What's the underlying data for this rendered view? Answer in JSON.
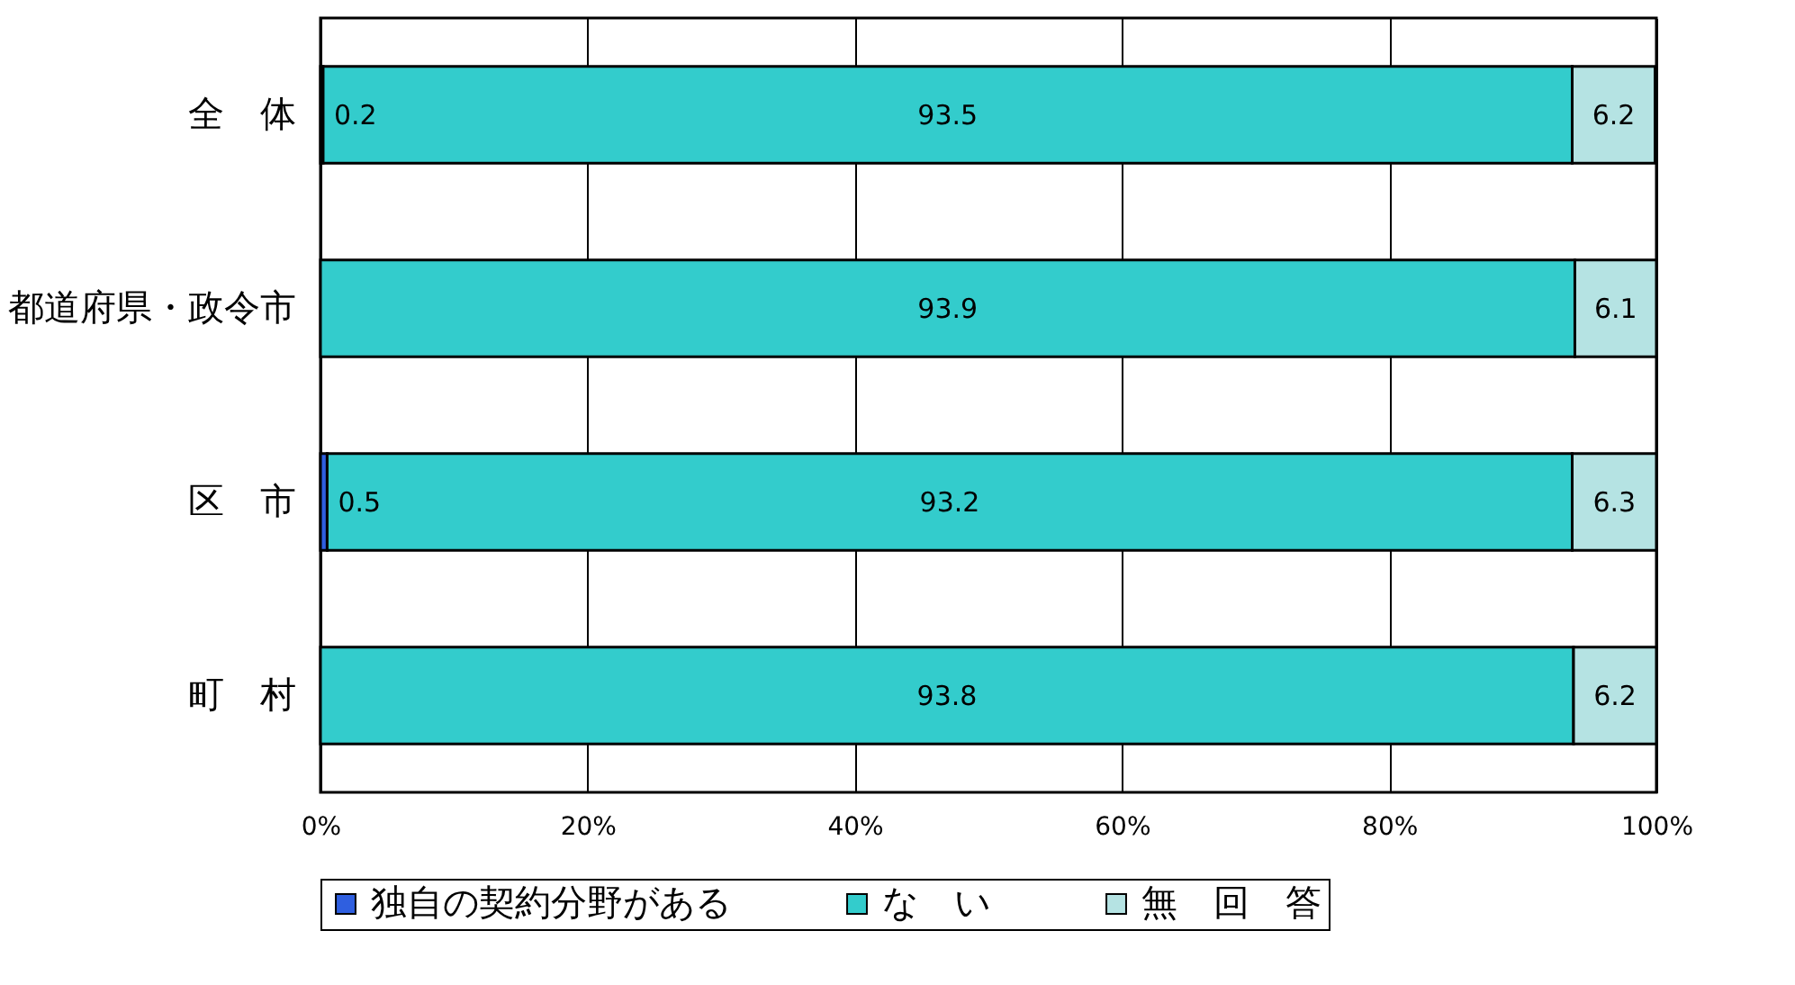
{
  "chart_data": {
    "type": "bar",
    "orientation": "horizontal",
    "stacked": true,
    "categories": [
      "全　体",
      "都道府県・政令市",
      "区　市",
      "町　村"
    ],
    "series": [
      {
        "name": "独自の契約分野がある",
        "color": "#2f5fe0",
        "values": [
          0.2,
          null,
          0.5,
          null
        ],
        "value_labels": [
          "0.2",
          null,
          "0.5",
          null
        ]
      },
      {
        "name": "な　い",
        "color": "#33cccc",
        "values": [
          93.5,
          93.9,
          93.2,
          93.8
        ],
        "value_labels": [
          "93.5",
          "93.9",
          "93.2",
          "93.8"
        ]
      },
      {
        "name": "無　回　答",
        "color": "#b5e3e3",
        "values": [
          6.2,
          6.1,
          6.3,
          6.2
        ],
        "value_labels": [
          "6.2",
          "6.1",
          "6.3",
          "6.2"
        ]
      }
    ],
    "xlim": [
      0,
      100
    ],
    "xticks": [
      {
        "value": 0,
        "label": "0%"
      },
      {
        "value": 20,
        "label": "20%"
      },
      {
        "value": 40,
        "label": "40%"
      },
      {
        "value": 60,
        "label": "60%"
      },
      {
        "value": 80,
        "label": "80%"
      },
      {
        "value": 100,
        "label": "100%"
      }
    ],
    "grid": "x",
    "legend": "bottom"
  }
}
